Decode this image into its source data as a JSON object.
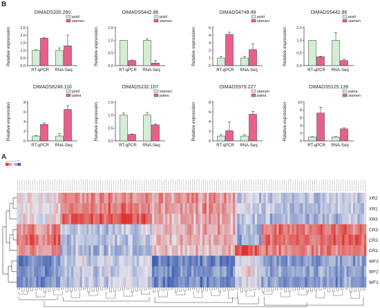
{
  "panel_labels": {
    "top": "B",
    "bottom": "A"
  },
  "legend_colors": {
    "pistil": "#d4edd4",
    "stamen": "#e8608a",
    "palea": "#e8608a"
  },
  "chart_data": [
    {
      "type": "bar",
      "title": "DIMADS335.260",
      "categories": [
        "RT-qPCR",
        "RNA-Seq"
      ],
      "ylabel": "Relative expression",
      "ylim": [
        0,
        2.5
      ],
      "yticks": [
        "0.0",
        "0.5",
        "1.0",
        "1.5",
        "2.0",
        "2.5"
      ],
      "series": [
        {
          "name": "pistil",
          "values": [
            1.0,
            1.0
          ],
          "errors": [
            0.05,
            0.15
          ],
          "color": "#d4edd4"
        },
        {
          "name": "stamen",
          "values": [
            1.8,
            1.3
          ],
          "errors": [
            0.03,
            0.7
          ],
          "color": "#e8608a"
        }
      ]
    },
    {
      "type": "bar",
      "title": "DIMADS5442.86",
      "categories": [
        "RT-qPCR",
        "RNA-Seq"
      ],
      "ylabel": "Relative expression",
      "ylim": [
        0,
        1.5
      ],
      "yticks": [
        "0.0",
        "0.5",
        "1.0",
        "1.5"
      ],
      "series": [
        {
          "name": "pistil",
          "values": [
            1.0,
            1.0
          ],
          "errors": [
            0.0,
            0.06
          ],
          "color": "#d4edd4"
        },
        {
          "name": "stamen",
          "values": [
            0.2,
            0.1
          ],
          "errors": [
            0.02,
            0.1
          ],
          "color": "#e8608a"
        }
      ]
    },
    {
      "type": "bar",
      "title": "DIMADS4749.49",
      "categories": [
        "RT-qPCR",
        "RNA-Seq"
      ],
      "ylabel": "Relative expression",
      "ylim": [
        0,
        5
      ],
      "yticks": [
        "0",
        "1",
        "2",
        "3",
        "4",
        "5"
      ],
      "series": [
        {
          "name": "pistil",
          "values": [
            1.0,
            1.0
          ],
          "errors": [
            0.2,
            0.2
          ],
          "color": "#d4edd4"
        },
        {
          "name": "stamen",
          "values": [
            4.1,
            2.1
          ],
          "errors": [
            0.3,
            0.8
          ],
          "color": "#e8608a"
        }
      ]
    },
    {
      "type": "bar",
      "title": "DIMADS5442.86",
      "categories": [
        "RT-qPCR",
        "RNA-Seq"
      ],
      "ylabel": "Relative expression",
      "ylim": [
        0,
        1.5
      ],
      "yticks": [
        "0.0",
        "0.5",
        "1.0",
        "1.5"
      ],
      "series": [
        {
          "name": "pistil",
          "values": [
            1.0,
            1.0
          ],
          "errors": [
            0.0,
            0.3
          ],
          "color": "#d4edd4"
        },
        {
          "name": "stamen",
          "values": [
            0.35,
            0.2
          ],
          "errors": [
            0.02,
            0.05
          ],
          "color": "#e8608a"
        }
      ]
    },
    {
      "type": "bar",
      "title": "DIMADS6248.116",
      "categories": [
        "RT-qPCR",
        "RNA-Seq"
      ],
      "ylabel": "Relative expression",
      "ylim": [
        0,
        8
      ],
      "yticks": [
        "0",
        "2",
        "4",
        "6",
        "8"
      ],
      "series": [
        {
          "name": "pistil",
          "values": [
            1.0,
            1.0
          ],
          "errors": [
            0.1,
            0.5
          ],
          "color": "#d4edd4"
        },
        {
          "name": "palea",
          "values": [
            3.4,
            6.5
          ],
          "errors": [
            0.3,
            0.8
          ],
          "color": "#e8608a"
        }
      ]
    },
    {
      "type": "bar",
      "title": "DIMADS232.107",
      "categories": [
        "RT-qPCR",
        "RNA-Seq"
      ],
      "ylabel": "Relative expression",
      "ylim": [
        0,
        1.5
      ],
      "yticks": [
        "0.0",
        "0.5",
        "1.0",
        "1.5"
      ],
      "series": [
        {
          "name": "stamen",
          "values": [
            1.0,
            1.0
          ],
          "errors": [
            0.08,
            0.1
          ],
          "color": "#d4edd4"
        },
        {
          "name": "palea",
          "values": [
            0.25,
            0.62
          ],
          "errors": [
            0.02,
            0.03
          ],
          "color": "#e8608a"
        }
      ]
    },
    {
      "type": "bar",
      "title": "DIMADS979.227",
      "categories": [
        "RT-qPCR",
        "RNA-Seq"
      ],
      "ylabel": "Relative expression",
      "ylim": [
        0,
        8
      ],
      "yticks": [
        "0",
        "2",
        "4",
        "6",
        "8"
      ],
      "series": [
        {
          "name": "stamen",
          "values": [
            1.0,
            1.0
          ],
          "errors": [
            0.3,
            0.3
          ],
          "color": "#d4edd4"
        },
        {
          "name": "palea",
          "values": [
            2.1,
            5.5
          ],
          "errors": [
            1.8,
            0.6
          ],
          "color": "#e8608a"
        }
      ]
    },
    {
      "type": "bar",
      "title": "DIMADS5125.139",
      "categories": [
        "RT-qPCR",
        "RNA-Seq"
      ],
      "ylabel": "Relative expression",
      "ylim": [
        0,
        10
      ],
      "yticks": [
        "0",
        "2",
        "4",
        "6",
        "8",
        "10"
      ],
      "series": [
        {
          "name": "palea",
          "values": [
            1.0,
            1.0
          ],
          "errors": [
            0.1,
            0.1
          ],
          "color": "#d4edd4"
        },
        {
          "name": "stamen",
          "values": [
            7.2,
            3.1
          ],
          "errors": [
            1.5,
            0.3
          ],
          "color": "#e8608a"
        }
      ]
    },
    {
      "type": "heatmap",
      "rows": [
        "XR2",
        "XR1",
        "XR3",
        "CR3",
        "CR2",
        "CR1",
        "WF3",
        "WF2",
        "WF1"
      ],
      "color_scale": {
        "ticks": [
          "-2",
          "-1",
          "0",
          "1",
          "2"
        ],
        "low": "#3d5fb0",
        "mid": "#e4e4ec",
        "high": "#e0322c"
      },
      "column_count": 160,
      "segments": [
        {
          "start": 0,
          "end": 20,
          "profile": [
            0.3,
            0.2,
            0.1,
            1.1,
            1.3,
            0.9,
            -1.4,
            -1.2,
            -1.3
          ]
        },
        {
          "start": 20,
          "end": 62,
          "profile": [
            1.0,
            1.2,
            1.6,
            -0.4,
            -0.5,
            -0.6,
            -0.2,
            -0.4,
            -0.3
          ]
        },
        {
          "start": 62,
          "end": 100,
          "profile": [
            0.9,
            0.8,
            0.6,
            0.6,
            0.5,
            0.4,
            -1.5,
            -1.3,
            -1.4
          ]
        },
        {
          "start": 100,
          "end": 112,
          "profile": [
            -0.3,
            -0.2,
            -0.5,
            -0.7,
            -0.8,
            1.6,
            -0.1,
            0.1,
            -0.2
          ]
        },
        {
          "start": 112,
          "end": 160,
          "profile": [
            -0.4,
            -0.5,
            -0.6,
            1.2,
            1.4,
            1.1,
            -1.0,
            -0.9,
            -1.1
          ]
        }
      ]
    }
  ]
}
